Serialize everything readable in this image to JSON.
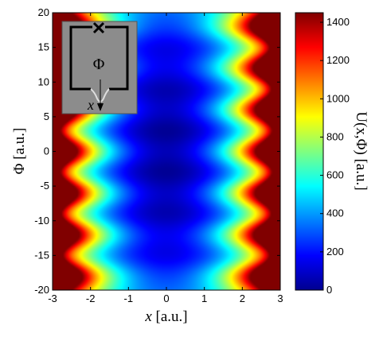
{
  "chart_data": {
    "type": "heatmap",
    "title": "",
    "xlabel_var": "x",
    "xlabel_unit": " [a.u.]",
    "ylabel": "Φ [a.u.]",
    "colorbar_label": "U(x,Φ) [a.u.]",
    "xlim": [
      -3,
      3
    ],
    "ylim": [
      -20,
      20
    ],
    "clim": [
      0,
      1450
    ],
    "x_ticks": [
      -3,
      -2,
      -1,
      0,
      1,
      2,
      3
    ],
    "y_ticks": [
      -20,
      -15,
      -10,
      -5,
      0,
      5,
      10,
      15,
      20
    ],
    "colorbar_ticks": [
      0,
      200,
      400,
      600,
      800,
      1000,
      1200,
      1400
    ],
    "colormap": "jet",
    "grid": false,
    "minima_phi": [
      -15,
      -9,
      -3,
      3,
      9,
      15
    ],
    "inset": {
      "phi_label": "Φ",
      "x_label": "x",
      "background": "#8c8c8c"
    }
  }
}
